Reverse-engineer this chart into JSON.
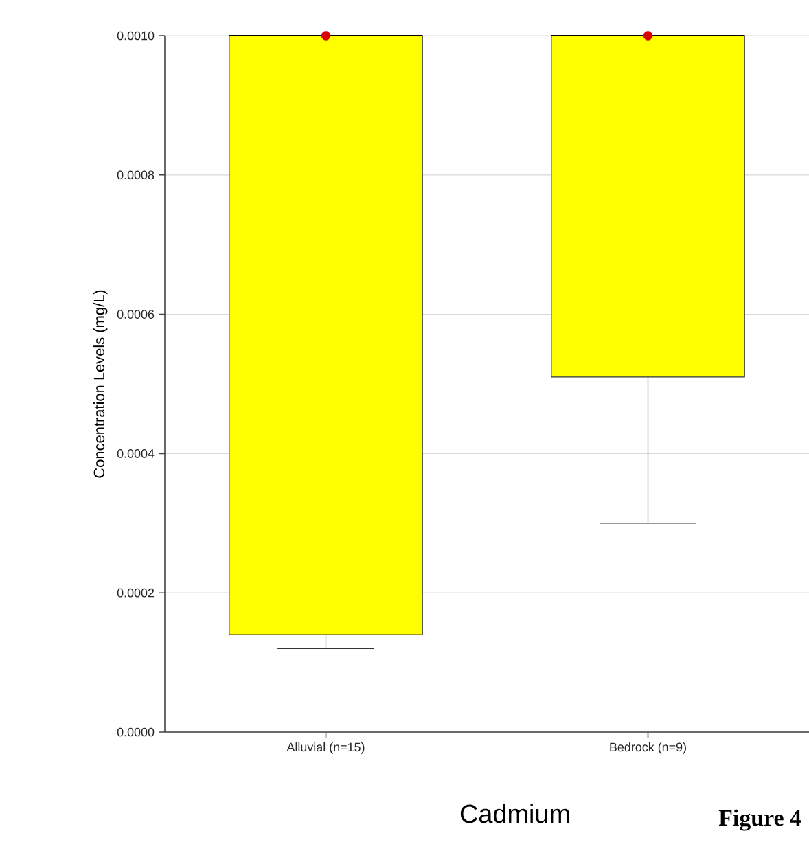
{
  "chart_data": {
    "type": "box",
    "title": "Cadmium",
    "ylabel": "Concentration Levels (mg/L)",
    "annotations": [
      "Figure 4"
    ],
    "categories": [
      "Alluvial  (n=15)",
      "Bedrock (n=9)"
    ],
    "color": "#ffff00",
    "boxes": [
      {
        "low": 0.00012,
        "q1": 0.00014,
        "median": 0.001,
        "q3": 0.001,
        "high": 0.001,
        "mean": 0.001
      },
      {
        "low": 0.0003,
        "q1": 0.00051,
        "median": 0.001,
        "q3": 0.001,
        "high": 0.001,
        "mean": 0.001
      }
    ],
    "ylim": [
      0,
      0.001
    ],
    "yticks": [
      {
        "value": 0,
        "label": "0.0000"
      },
      {
        "value": 0.0002,
        "label": "0.0002"
      },
      {
        "value": 0.0004,
        "label": "0.0004"
      },
      {
        "value": 0.0006,
        "label": "0.0006"
      },
      {
        "value": 0.0008,
        "label": "0.0008"
      },
      {
        "value": 0.001,
        "label": "0.0010"
      }
    ],
    "grid": "y"
  }
}
